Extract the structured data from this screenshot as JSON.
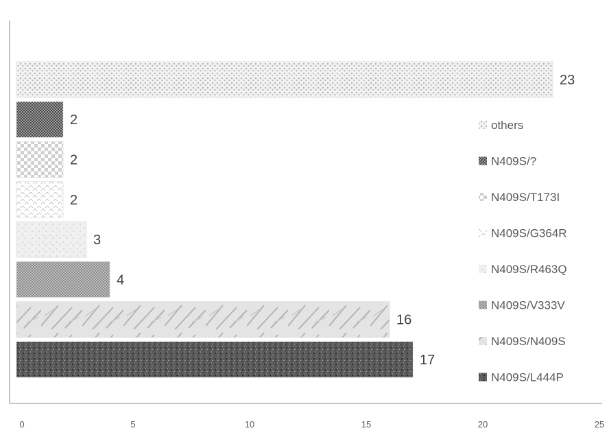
{
  "chart_data": {
    "type": "bar",
    "orientation": "horizontal",
    "categories": [
      "N409S/L444P",
      "N409S/N409S",
      "N409S/V333V",
      "N409S/R463Q",
      "N409S/G364R",
      "N409S/T173I",
      "N409S/?",
      "others"
    ],
    "values": [
      17,
      16,
      4,
      3,
      2,
      2,
      2,
      23
    ],
    "data_labels": [
      "17",
      "16",
      "4",
      "3",
      "2",
      "2",
      "2",
      "23"
    ],
    "xlim": [
      0,
      25
    ],
    "xticks": [
      "0",
      "5",
      "10",
      "15",
      "20",
      "25"
    ],
    "title": "",
    "xlabel": "",
    "ylabel": "",
    "grid": false,
    "legend": {
      "position": "right",
      "entries": [
        "others",
        "N409S/?",
        "N409S/T173I",
        "N409S/G364R",
        "N409S/R463Q",
        "N409S/V333V",
        "N409S/N409S",
        "N409S/L444P"
      ]
    },
    "colors": {
      "N409S/L444P": "#5a5a5a",
      "N409S/N409S": "#dcdcdc",
      "N409S/V333V": "#a6a6a6",
      "N409S/R463Q": "#eeeeee",
      "N409S/G364R": "#f6f6f6",
      "N409S/T173I": "#c8c8c8",
      "N409S/?": "#6e6e6e",
      "others": "#d4d4d4"
    },
    "axis_color": "#8c8c8c",
    "text_color": "#595959"
  }
}
